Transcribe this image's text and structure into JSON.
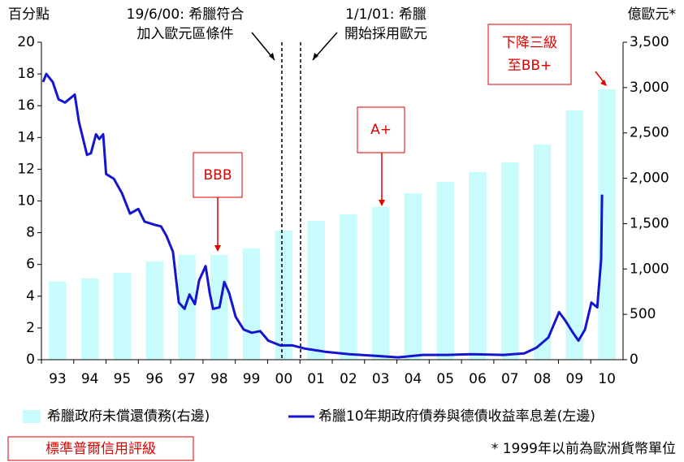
{
  "chart_data": {
    "type": "bar-line",
    "y_axis_label": "百分點",
    "y2_axis_label": "億歐元*",
    "categories": [
      "93",
      "94",
      "95",
      "96",
      "97",
      "98",
      "99",
      "00",
      "01",
      "02",
      "03",
      "04",
      "05",
      "06",
      "07",
      "08",
      "09",
      "10"
    ],
    "xlim": [
      1993,
      2011
    ],
    "ylim": [
      0,
      20
    ],
    "yticks": [
      0,
      2,
      4,
      6,
      8,
      10,
      12,
      14,
      16,
      18,
      20
    ],
    "y2lim": [
      0,
      3500
    ],
    "y2ticks": [
      0,
      500,
      {
        "value": 1000,
        "label": "1,000"
      },
      {
        "value": 1500,
        "label": "1,500"
      },
      {
        "value": 2000,
        "label": "2,000"
      },
      {
        "value": 2500,
        "label": "2,500"
      },
      {
        "value": 3000,
        "label": "3,000"
      },
      {
        "value": 3500,
        "label": "3,500"
      }
    ],
    "series": [
      {
        "name": "希臘政府未償還債務(右邊)",
        "type": "bar",
        "axis": "y2",
        "color": "#c8fbfb",
        "values": [
          860,
          895,
          958,
          1083,
          1155,
          1155,
          1226,
          1423,
          1530,
          1602,
          1683,
          1835,
          1960,
          2068,
          2175,
          2372,
          2748,
          2980
        ]
      },
      {
        "name": "希臘10年期政府債券與德債收益率息差(左邊)",
        "type": "line",
        "axis": "y",
        "color": "#1515d0",
        "x": [
          1993.05,
          1993.15,
          1993.35,
          1993.53,
          1993.73,
          1994.03,
          1994.16,
          1994.41,
          1994.53,
          1994.69,
          1994.79,
          1994.91,
          1995.0,
          1995.24,
          1995.49,
          1995.74,
          1996.0,
          1996.19,
          1996.5,
          1996.7,
          1996.87,
          1997.07,
          1997.25,
          1997.43,
          1997.58,
          1997.75,
          1997.88,
          1998.08,
          1998.21,
          1998.31,
          1998.51,
          1998.66,
          1998.81,
          1999.01,
          1999.26,
          1999.51,
          1999.77,
          2000.02,
          2000.39,
          2000.77,
          2001.15,
          2001.78,
          2002.53,
          2003.29,
          2004.04,
          2004.8,
          2005.55,
          2006.3,
          2007.31,
          2007.94,
          2008.32,
          2008.69,
          2009.02,
          2009.2,
          2009.45,
          2009.62,
          2009.82,
          2010.02,
          2010.2,
          2010.32,
          2010.35
        ],
        "values": [
          17.5,
          18.0,
          17.5,
          16.4,
          16.2,
          16.7,
          15.0,
          12.9,
          13.0,
          14.2,
          13.9,
          14.2,
          11.7,
          11.4,
          10.5,
          9.2,
          9.5,
          8.7,
          8.5,
          8.4,
          7.8,
          6.8,
          3.6,
          3.2,
          4.1,
          3.5,
          5.0,
          5.9,
          4.2,
          3.2,
          3.3,
          4.9,
          4.2,
          2.7,
          1.9,
          1.7,
          1.8,
          1.2,
          0.9,
          0.9,
          0.7,
          0.5,
          0.35,
          0.25,
          0.15,
          0.3,
          0.3,
          0.35,
          0.3,
          0.4,
          0.75,
          1.4,
          3.0,
          2.5,
          1.7,
          1.2,
          1.9,
          3.6,
          3.3,
          6.3,
          10.4
        ]
      }
    ],
    "annotations": {
      "events": [
        [
          "19/6/00: 希臘符合",
          "加入歐元區條件"
        ],
        [
          "1/1/01: 希臘",
          "開始採用歐元"
        ]
      ],
      "ratings": [
        [
          "BBB"
        ],
        [
          "A+"
        ],
        [
          "下降三級",
          "至BB+"
        ]
      ],
      "ratings_label": "標準普爾信用評級",
      "footnote": "* 1999年以前為歐洲貨幣單位"
    }
  }
}
